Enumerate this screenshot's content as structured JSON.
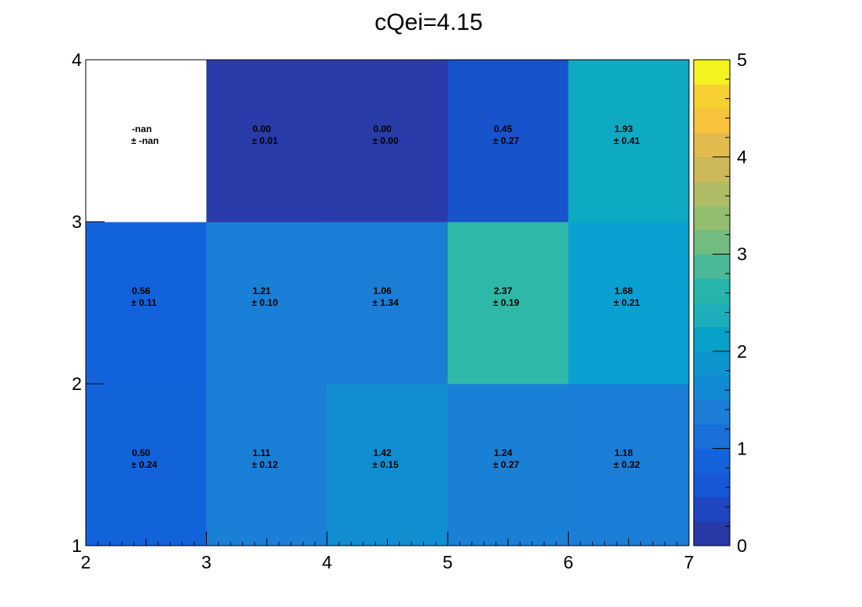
{
  "chart_data": {
    "type": "heatmap",
    "title": "cQei=4.15",
    "xlabel": "",
    "ylabel": "",
    "x_edges": [
      2,
      3,
      4,
      5,
      6,
      7
    ],
    "y_edges": [
      1,
      2,
      3,
      4
    ],
    "x_ticks": [
      "2",
      "3",
      "4",
      "5",
      "6",
      "7"
    ],
    "y_ticks": [
      "1",
      "2",
      "3",
      "4"
    ],
    "xlim": [
      2,
      7
    ],
    "ylim": [
      1,
      4
    ],
    "zlim": [
      0,
      5
    ],
    "colorbar_ticks": [
      "0",
      "1",
      "2",
      "3",
      "4",
      "5"
    ],
    "colorbar_levels": 20,
    "palette": [
      "#2b3aa3",
      "#1947c4",
      "#1258d6",
      "#1067d8",
      "#1576d6",
      "#1683d5",
      "#1291d3",
      "#0b9ccf",
      "#0ca8c6",
      "#20b3b4",
      "#33b89e",
      "#4fbc8a",
      "#70bc78",
      "#92bd68",
      "#b1bb5e",
      "#cdb857",
      "#e2bd4a",
      "#f6c33a",
      "#f8d82d",
      "#f5f11f"
    ],
    "colorbar_colors": [
      "#283aa7",
      "#1f47c1",
      "#1657d5",
      "#1463da",
      "#1a6fd8",
      "#1b7dd6",
      "#1289d3",
      "#0b96d0",
      "#08a1c8",
      "#1eaebb",
      "#27b4aa",
      "#4ab99a",
      "#72bb81",
      "#92bd6f",
      "#b0bc65",
      "#cdb959",
      "#e1bb4e",
      "#f8c33c",
      "#f6d030",
      "#f5f31f"
    ],
    "empty_color": "#ffffff",
    "cells": [
      {
        "xbin": 0,
        "ybin": 0,
        "value": 0.5,
        "error": 0.24,
        "label": "0.50",
        "err_label": "± 0.24",
        "color": "#1262da"
      },
      {
        "xbin": 1,
        "ybin": 0,
        "value": 1.11,
        "error": 0.12,
        "label": "1.11",
        "err_label": "± 0.12",
        "color": "#1a7fd6"
      },
      {
        "xbin": 2,
        "ybin": 0,
        "value": 1.42,
        "error": 0.15,
        "label": "1.42",
        "err_label": "± 0.15",
        "color": "#118ed2"
      },
      {
        "xbin": 3,
        "ybin": 0,
        "value": 1.24,
        "error": 0.27,
        "label": "1.24",
        "err_label": "± 0.27",
        "color": "#1a80d6"
      },
      {
        "xbin": 4,
        "ybin": 0,
        "value": 1.18,
        "error": 0.32,
        "label": "1.18",
        "err_label": "± 0.32",
        "color": "#1a7dd6"
      },
      {
        "xbin": 0,
        "ybin": 1,
        "value": 0.56,
        "error": 0.11,
        "label": "0.56",
        "err_label": "± 0.11",
        "color": "#1263db"
      },
      {
        "xbin": 1,
        "ybin": 1,
        "value": 1.21,
        "error": 0.1,
        "label": "1.21",
        "err_label": "± 0.10",
        "color": "#1a7fd6"
      },
      {
        "xbin": 2,
        "ybin": 1,
        "value": 1.06,
        "error": 1.34,
        "label": "1.06",
        "err_label": "± 1.34",
        "color": "#1a7ed6"
      },
      {
        "xbin": 3,
        "ybin": 1,
        "value": 2.37,
        "error": 0.19,
        "label": "2.37",
        "err_label": "± 0.19",
        "color": "#2db8a7"
      },
      {
        "xbin": 4,
        "ybin": 1,
        "value": 1.68,
        "error": 0.21,
        "label": "1.68",
        "err_label": "± 0.21",
        "color": "#0ba0d2"
      },
      {
        "xbin": 0,
        "ybin": 2,
        "value": null,
        "error": null,
        "label": "-nan",
        "err_label": "± -nan",
        "color": "#ffffff"
      },
      {
        "xbin": 1,
        "ybin": 2,
        "value": 0.0,
        "error": 0.01,
        "label": "0.00",
        "err_label": "± 0.01",
        "color": "#283ba8"
      },
      {
        "xbin": 2,
        "ybin": 2,
        "value": 0.0,
        "error": 0.0,
        "label": "0.00",
        "err_label": "± 0.00",
        "color": "#283ba8"
      },
      {
        "xbin": 3,
        "ybin": 2,
        "value": 0.45,
        "error": 0.27,
        "label": "0.45",
        "err_label": "± 0.27",
        "color": "#1754cc"
      },
      {
        "xbin": 4,
        "ybin": 2,
        "value": 1.93,
        "error": 0.41,
        "label": "1.93",
        "err_label": "± 0.41",
        "color": "#0eaac3"
      }
    ]
  }
}
